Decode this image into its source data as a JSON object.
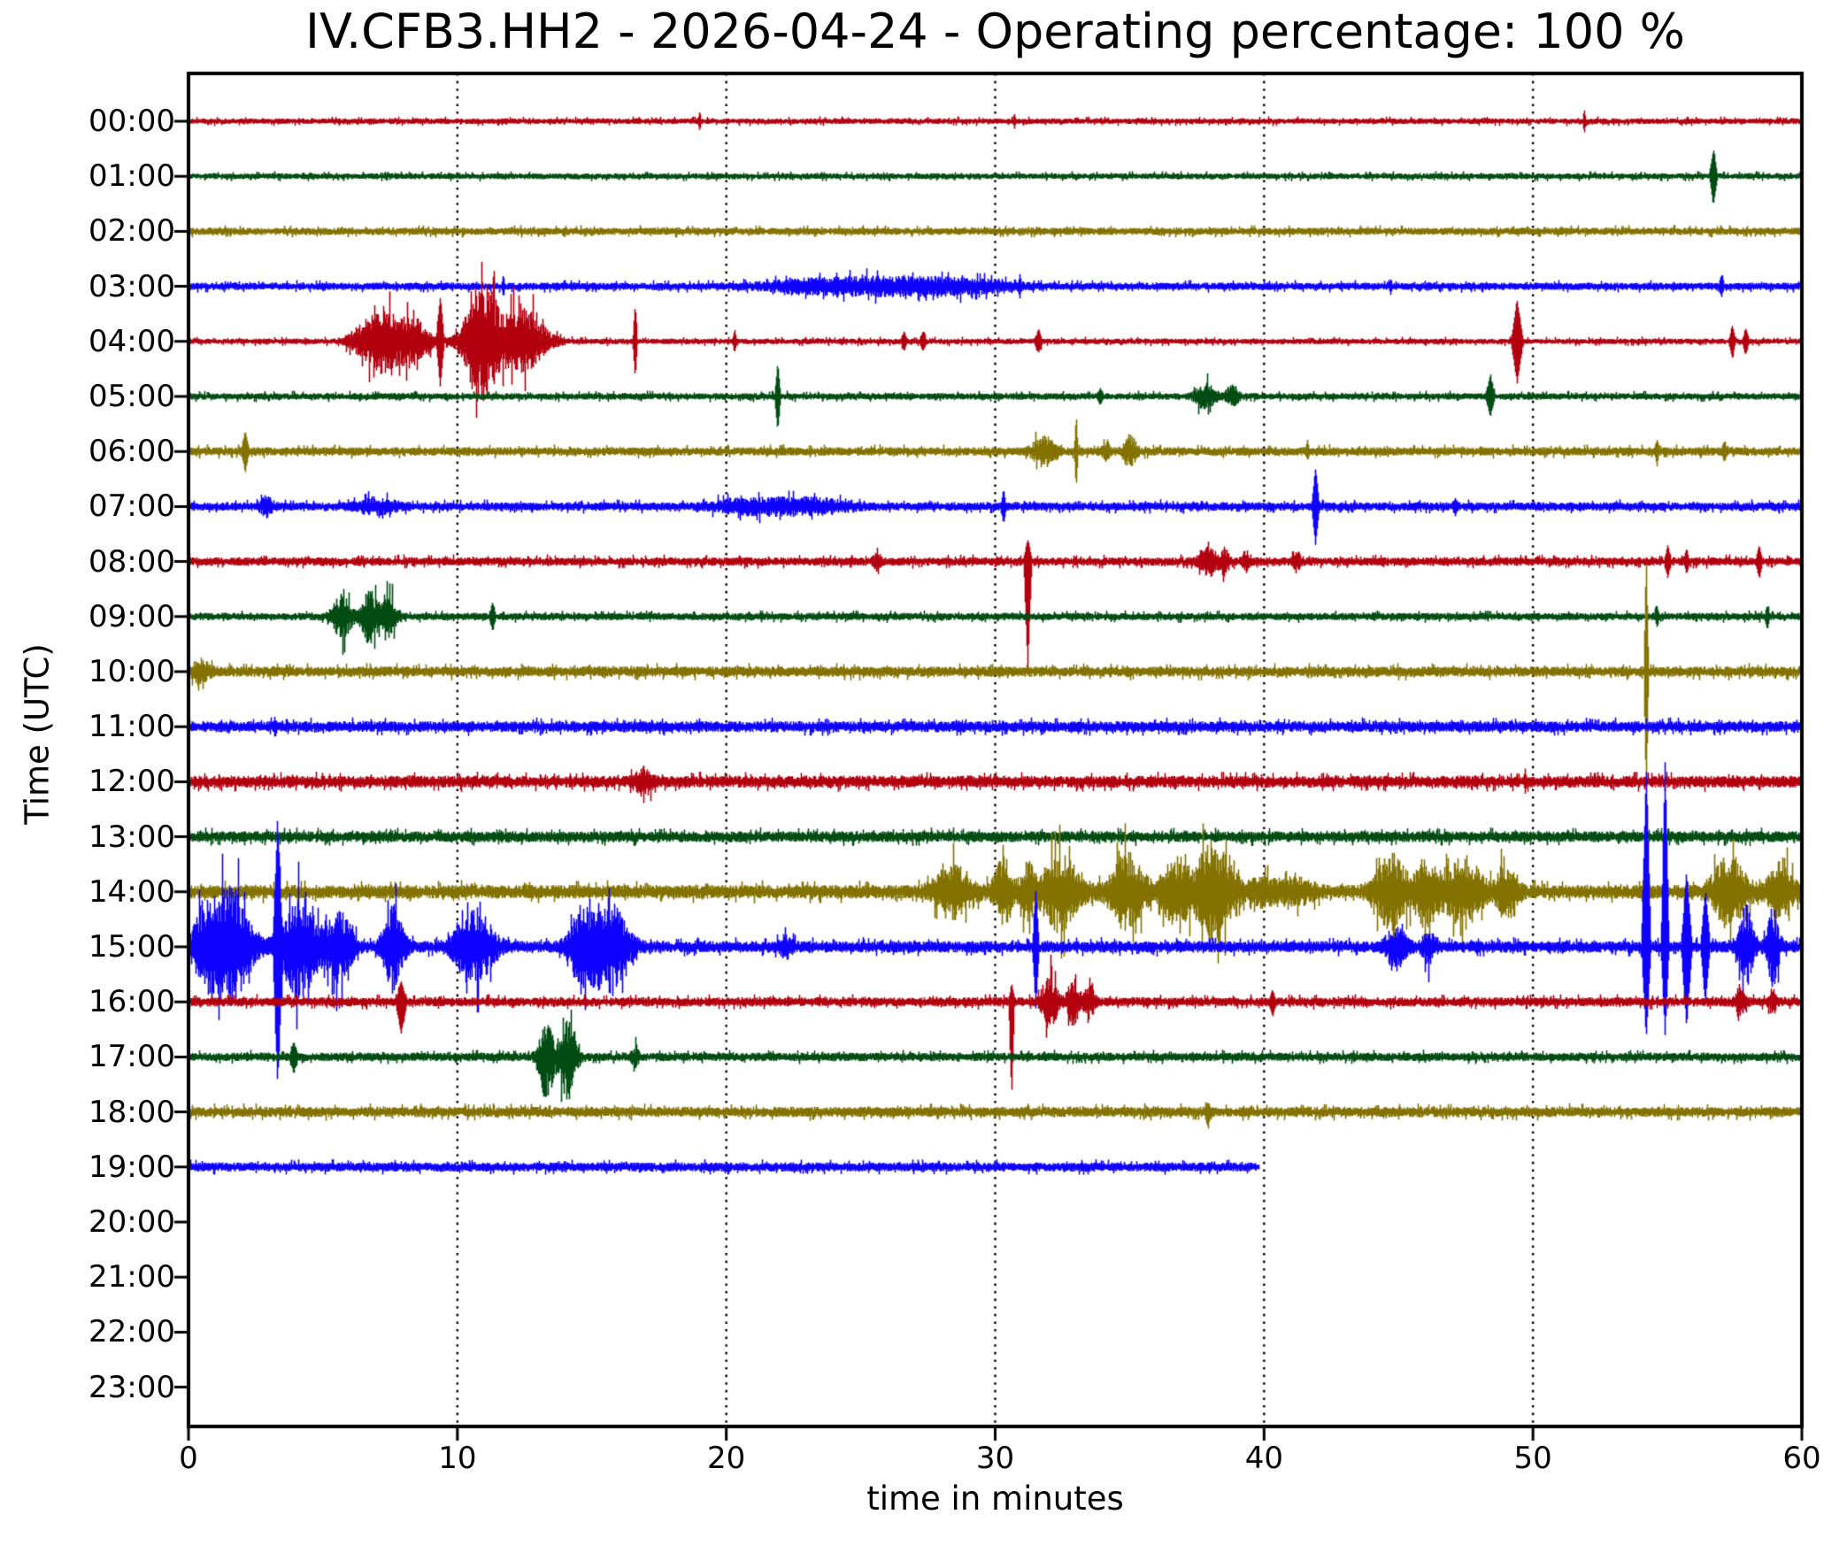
{
  "chart_data": {
    "type": "line",
    "subtype": "seismogram-dayplot",
    "title": "IV.CFB3.HH2 - 2026-04-24 - Operating percentage: 100 %",
    "station": "IV.CFB3.HH2",
    "date": "2026-04-24",
    "operating_percentage": "100 %",
    "xlabel": "time in minutes",
    "ylabel": "Time (UTC)",
    "xlim": [
      0,
      60
    ],
    "x_ticks": [
      0,
      10,
      20,
      30,
      40,
      50,
      60
    ],
    "grid_minutes": [
      10,
      20,
      30,
      40,
      50
    ],
    "grid_style": "dotted",
    "palette": {
      "red": "#B2000F",
      "green": "#004C12",
      "olive": "#847200",
      "blue": "#0E01FF"
    },
    "rows": [
      {
        "hour": "00:00",
        "color": "red",
        "start": 0,
        "end": 60,
        "noise": 3.2,
        "events": [
          {
            "type": "spike",
            "t": 19.0,
            "w": 0.12,
            "amp": 9
          },
          {
            "type": "spike",
            "t": 30.7,
            "w": 0.1,
            "amp": 7
          },
          {
            "type": "spike",
            "t": 51.9,
            "w": 0.12,
            "amp": 11
          }
        ]
      },
      {
        "hour": "01:00",
        "color": "green",
        "start": 0,
        "end": 60,
        "noise": 3.4,
        "events": [
          {
            "type": "spike",
            "t": 56.7,
            "w": 0.3,
            "amp": [
              28,
              30
            ]
          }
        ]
      },
      {
        "hour": "02:00",
        "color": "olive",
        "start": 0,
        "end": 60,
        "noise": 4.2,
        "events": []
      },
      {
        "hour": "03:00",
        "color": "blue",
        "start": 0,
        "end": 60,
        "noise": 4.2,
        "events": [
          {
            "type": "tremor",
            "t": 26.0,
            "dur": 8,
            "amp": 8
          },
          {
            "type": "spike",
            "t": 11.7,
            "w": 0.12,
            "amp": 11
          },
          {
            "type": "spike",
            "t": 30.9,
            "w": 0.15,
            "amp": 9
          },
          {
            "type": "spike",
            "t": 44.7,
            "w": 0.1,
            "amp": 6
          },
          {
            "type": "spike",
            "t": 57.0,
            "w": 0.2,
            "amp": 9
          }
        ]
      },
      {
        "hour": "04:00",
        "color": "red",
        "start": 0,
        "end": 60,
        "noise": 3.2,
        "events": [
          {
            "type": "burst",
            "t": 6.3,
            "dur": 0.9,
            "amp": 7
          },
          {
            "type": "burst",
            "t": 7.2,
            "dur": 1.4,
            "amp": 34
          },
          {
            "type": "burst",
            "t": 8.4,
            "dur": 1.0,
            "amp": 26
          },
          {
            "type": "spike",
            "t": 9.35,
            "w": 0.3,
            "amp": 48
          },
          {
            "type": "burst",
            "t": 10.9,
            "dur": 1.2,
            "amp": 68
          },
          {
            "type": "burst",
            "t": 12.4,
            "dur": 1.6,
            "amp": 36
          },
          {
            "type": "spike",
            "t": 16.6,
            "w": 0.18,
            "amp": 40
          },
          {
            "type": "spike",
            "t": 20.3,
            "w": 0.15,
            "amp": 11
          },
          {
            "type": "spike",
            "t": 26.6,
            "w": 0.25,
            "amp": 9
          },
          {
            "type": "spike",
            "t": 27.3,
            "w": 0.25,
            "amp": 9
          },
          {
            "type": "spike",
            "t": 31.6,
            "w": 0.3,
            "amp": 11
          },
          {
            "type": "spike",
            "t": 49.4,
            "w": 0.45,
            "amp": 44
          },
          {
            "type": "spike",
            "t": 57.4,
            "w": 0.25,
            "amp": 16
          },
          {
            "type": "spike",
            "t": 57.9,
            "w": 0.25,
            "amp": 13
          }
        ]
      },
      {
        "hour": "05:00",
        "color": "green",
        "start": 0,
        "end": 60,
        "noise": 3.8,
        "events": [
          {
            "type": "spike",
            "t": 21.9,
            "w": 0.22,
            "amp": 36
          },
          {
            "type": "spike",
            "t": 33.9,
            "w": 0.25,
            "amp": 7
          },
          {
            "type": "burst",
            "t": 37.8,
            "dur": 0.7,
            "amp": 13
          },
          {
            "type": "burst",
            "t": 38.8,
            "dur": 0.45,
            "amp": 11
          },
          {
            "type": "spike",
            "t": 48.4,
            "w": 0.35,
            "amp": 20
          }
        ]
      },
      {
        "hour": "06:00",
        "color": "olive",
        "start": 0,
        "end": 60,
        "noise": 4.8,
        "events": [
          {
            "type": "spike",
            "t": 2.1,
            "w": 0.28,
            "amp": 20
          },
          {
            "type": "burst",
            "t": 31.8,
            "dur": 0.8,
            "amp": 15
          },
          {
            "type": "spike",
            "t": 33.0,
            "w": 0.14,
            "amp": 38
          },
          {
            "type": "burst",
            "t": 34.1,
            "dur": 0.3,
            "amp": 11
          },
          {
            "type": "burst",
            "t": 35.0,
            "dur": 0.45,
            "amp": 16
          },
          {
            "type": "spike",
            "t": 41.6,
            "w": 0.18,
            "amp": 7
          },
          {
            "type": "spike",
            "t": 54.6,
            "w": 0.18,
            "amp": 11
          },
          {
            "type": "spike",
            "t": 57.1,
            "w": 0.18,
            "amp": 9
          }
        ]
      },
      {
        "hour": "07:00",
        "color": "blue",
        "start": 0,
        "end": 60,
        "noise": 4.8,
        "events": [
          {
            "type": "burst",
            "t": 2.9,
            "dur": 0.45,
            "amp": 9
          },
          {
            "type": "burst",
            "t": 7.0,
            "dur": 1.4,
            "amp": 7
          },
          {
            "type": "tremor",
            "t": 22.0,
            "dur": 4.5,
            "amp": 7
          },
          {
            "type": "spike",
            "t": 30.3,
            "w": 0.18,
            "amp": 16
          },
          {
            "type": "spike",
            "t": 41.9,
            "w": 0.28,
            "amp": 40
          },
          {
            "type": "spike",
            "t": 47.1,
            "w": 0.25,
            "amp": 7
          }
        ]
      },
      {
        "hour": "08:00",
        "color": "red",
        "start": 0,
        "end": 60,
        "noise": 4.8,
        "events": [
          {
            "type": "burst",
            "t": 25.6,
            "dur": 0.3,
            "amp": 7
          },
          {
            "type": "spike",
            "t": 31.2,
            "w": 0.3,
            "amp": [
              22,
              118
            ]
          },
          {
            "type": "burst",
            "t": 37.9,
            "dur": 0.55,
            "amp": 16
          },
          {
            "type": "burst",
            "t": 38.5,
            "dur": 0.35,
            "amp": 12
          },
          {
            "type": "burst",
            "t": 39.3,
            "dur": 0.25,
            "amp": 9
          },
          {
            "type": "burst",
            "t": 41.2,
            "dur": 0.25,
            "amp": 9
          },
          {
            "type": "spike",
            "t": 55.0,
            "w": 0.25,
            "amp": 15
          },
          {
            "type": "spike",
            "t": 55.7,
            "w": 0.18,
            "amp": 11
          },
          {
            "type": "spike",
            "t": 58.4,
            "w": 0.25,
            "amp": 16
          }
        ]
      },
      {
        "hour": "09:00",
        "color": "green",
        "start": 0,
        "end": 60,
        "noise": 4.2,
        "events": [
          {
            "type": "burst",
            "t": 5.7,
            "dur": 0.7,
            "amp": 22
          },
          {
            "type": "burst",
            "t": 6.7,
            "dur": 0.55,
            "amp": 28
          },
          {
            "type": "burst",
            "t": 7.4,
            "dur": 0.6,
            "amp": 25
          },
          {
            "type": "spike",
            "t": 11.3,
            "w": 0.25,
            "amp": 13
          },
          {
            "type": "spike",
            "t": 54.6,
            "w": 0.18,
            "amp": 9
          },
          {
            "type": "spike",
            "t": 58.7,
            "w": 0.18,
            "amp": 11
          }
        ]
      },
      {
        "hour": "10:00",
        "color": "olive",
        "start": 0,
        "end": 60,
        "noise": 5.8,
        "events": [
          {
            "type": "burst",
            "t": 0.4,
            "dur": 0.7,
            "amp": 11
          },
          {
            "type": "spike",
            "t": 54.2,
            "w": 0.18,
            "amp": [
              126,
              136
            ]
          }
        ]
      },
      {
        "hour": "11:00",
        "color": "blue",
        "start": 0,
        "end": 60,
        "noise": 6.2,
        "events": [
          {
            "type": "spike",
            "t": 3.2,
            "w": 0.15,
            "amp": 7
          }
        ]
      },
      {
        "hour": "12:00",
        "color": "red",
        "start": 0,
        "end": 60,
        "noise": 6.8,
        "events": [
          {
            "type": "burst",
            "t": 16.9,
            "dur": 0.6,
            "amp": 13
          },
          {
            "type": "spike",
            "t": 49.7,
            "w": 0.12,
            "amp": 9
          }
        ]
      },
      {
        "hour": "13:00",
        "color": "green",
        "start": 0,
        "end": 60,
        "noise": 6.2,
        "events": []
      },
      {
        "hour": "14:00",
        "color": "olive",
        "start": 0,
        "end": 60,
        "noise": 7.8,
        "events": [
          {
            "type": "burst",
            "t": 28.4,
            "dur": 1.3,
            "amp": 26
          },
          {
            "type": "burst",
            "t": 30.3,
            "dur": 0.7,
            "amp": 33
          },
          {
            "type": "burst",
            "t": 31.2,
            "dur": 0.45,
            "amp": 28
          },
          {
            "type": "burst",
            "t": 32.4,
            "dur": 1.4,
            "amp": 38
          },
          {
            "type": "burst",
            "t": 34.9,
            "dur": 1.2,
            "amp": 40
          },
          {
            "type": "burst",
            "t": 36.7,
            "dur": 1.0,
            "amp": 33
          },
          {
            "type": "burst",
            "t": 38.1,
            "dur": 1.3,
            "amp": 52
          },
          {
            "type": "tremor",
            "t": 40.5,
            "dur": 2.5,
            "amp": 11
          },
          {
            "type": "burst",
            "t": 44.7,
            "dur": 1.1,
            "amp": 38
          },
          {
            "type": "burst",
            "t": 46.0,
            "dur": 0.9,
            "amp": 33
          },
          {
            "type": "burst",
            "t": 47.4,
            "dur": 1.3,
            "amp": 36
          },
          {
            "type": "burst",
            "t": 49.0,
            "dur": 0.7,
            "amp": 28
          },
          {
            "type": "burst",
            "t": 57.3,
            "dur": 1.2,
            "amp": 38
          },
          {
            "type": "burst",
            "t": 59.2,
            "dur": 0.9,
            "amp": 28
          }
        ]
      },
      {
        "hour": "15:00",
        "color": "blue",
        "start": 0,
        "end": 60,
        "noise": 6.5,
        "events": [
          {
            "type": "burst",
            "t": 0.6,
            "dur": 0.9,
            "amp": 42
          },
          {
            "type": "burst",
            "t": 1.6,
            "dur": 1.3,
            "amp": 65
          },
          {
            "type": "spike",
            "t": 3.3,
            "w": 0.35,
            "amp": [
              130,
              140
            ]
          },
          {
            "type": "burst",
            "t": 4.1,
            "dur": 1.3,
            "amp": 55
          },
          {
            "type": "burst",
            "t": 5.6,
            "dur": 0.9,
            "amp": 38
          },
          {
            "type": "burst",
            "t": 7.6,
            "dur": 0.7,
            "amp": 46
          },
          {
            "type": "burst",
            "t": 10.6,
            "dur": 1.3,
            "amp": 42
          },
          {
            "type": "burst",
            "t": 14.6,
            "dur": 0.9,
            "amp": 38
          },
          {
            "type": "burst",
            "t": 15.6,
            "dur": 1.3,
            "amp": 50
          },
          {
            "type": "burst",
            "t": 22.2,
            "dur": 0.5,
            "amp": 9
          },
          {
            "type": "spike",
            "t": 31.5,
            "w": 0.25,
            "amp": [
              60,
              65
            ]
          },
          {
            "type": "burst",
            "t": 44.9,
            "dur": 0.7,
            "amp": 22
          },
          {
            "type": "burst",
            "t": 46.1,
            "dur": 0.45,
            "amp": 18
          },
          {
            "type": "spike",
            "t": 54.2,
            "w": 0.35,
            "amp": [
              200,
              100
            ]
          },
          {
            "type": "spike",
            "t": 54.9,
            "w": 0.3,
            "amp": [
              205,
              95
            ]
          },
          {
            "type": "spike",
            "t": 55.7,
            "w": 0.4,
            "amp": [
              80,
              85
            ]
          },
          {
            "type": "spike",
            "t": 56.4,
            "w": 0.35,
            "amp": 60
          },
          {
            "type": "burst",
            "t": 57.9,
            "dur": 0.5,
            "amp": 45
          },
          {
            "type": "burst",
            "t": 58.9,
            "dur": 0.45,
            "amp": 40
          }
        ]
      },
      {
        "hour": "16:00",
        "color": "red",
        "start": 0,
        "end": 60,
        "noise": 5.2,
        "events": [
          {
            "type": "spike",
            "t": 7.9,
            "w": 0.4,
            "amp": [
              20,
              32
            ]
          },
          {
            "type": "spike",
            "t": 30.6,
            "w": 0.22,
            "amp": [
              18,
              105
            ]
          },
          {
            "type": "burst",
            "t": 32.0,
            "dur": 0.55,
            "amp": 28
          },
          {
            "type": "burst",
            "t": 32.9,
            "dur": 0.45,
            "amp": 23
          },
          {
            "type": "burst",
            "t": 33.5,
            "dur": 0.35,
            "amp": 18
          },
          {
            "type": "spike",
            "t": 40.3,
            "w": 0.25,
            "amp": 11
          },
          {
            "type": "burst",
            "t": 57.7,
            "dur": 0.35,
            "amp": 16
          },
          {
            "type": "burst",
            "t": 58.9,
            "dur": 0.25,
            "amp": 13
          }
        ]
      },
      {
        "hour": "17:00",
        "color": "green",
        "start": 0,
        "end": 60,
        "noise": 4.8,
        "events": [
          {
            "type": "spike",
            "t": 3.9,
            "w": 0.3,
            "amp": 14
          },
          {
            "type": "burst",
            "t": 13.3,
            "dur": 0.55,
            "amp": [
              35,
              45
            ]
          },
          {
            "type": "burst",
            "t": 14.1,
            "dur": 0.55,
            "amp": [
              40,
              48
            ]
          },
          {
            "type": "burst",
            "t": 16.6,
            "dur": 0.25,
            "amp": 9
          }
        ]
      },
      {
        "hour": "18:00",
        "color": "olive",
        "start": 0,
        "end": 60,
        "noise": 5.8,
        "events": [
          {
            "type": "spike",
            "t": 37.9,
            "w": 0.25,
            "amp": [
              8,
              13
            ]
          }
        ]
      },
      {
        "hour": "19:00",
        "color": "blue",
        "start": 0,
        "end": 39.8,
        "noise": 5.2,
        "events": []
      },
      {
        "hour": "20:00",
        "color": null,
        "start": null,
        "end": null,
        "noise": 0,
        "events": []
      },
      {
        "hour": "21:00",
        "color": null,
        "start": null,
        "end": null,
        "noise": 0,
        "events": []
      },
      {
        "hour": "22:00",
        "color": null,
        "start": null,
        "end": null,
        "noise": 0,
        "events": []
      },
      {
        "hour": "23:00",
        "color": null,
        "start": null,
        "end": null,
        "noise": 0,
        "events": []
      }
    ]
  }
}
